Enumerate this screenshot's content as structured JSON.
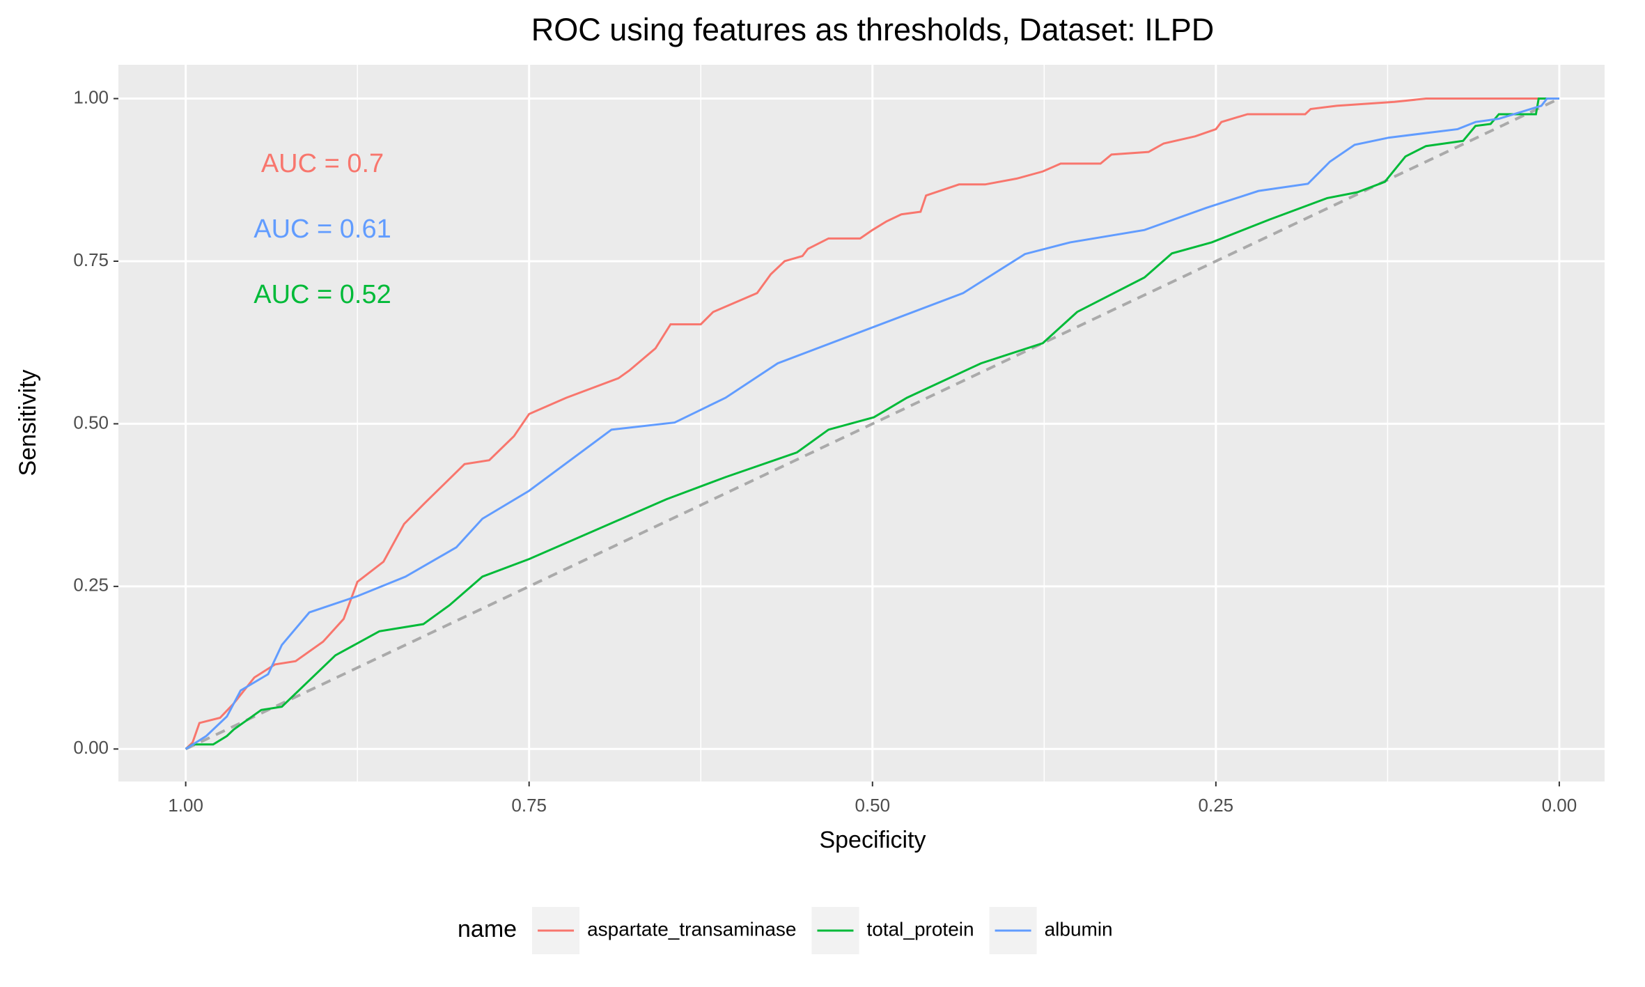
{
  "chart_data": {
    "type": "line",
    "title": "ROC using features as thresholds, Dataset: ILPD",
    "x_label": "Specificity",
    "y_label": "Sensitivity",
    "legend_title": "name",
    "legend_position": "bottom",
    "xlim": [
      1.049,
      -0.033
    ],
    "ylim": [
      -0.05,
      1.052
    ],
    "xticks": [
      {
        "value": 1,
        "label": "1.00"
      },
      {
        "value": 0.75,
        "label": "0.75"
      },
      {
        "value": 0.5,
        "label": "0.50"
      },
      {
        "value": 0.25,
        "label": "0.25"
      },
      {
        "value": 0,
        "label": "0.00"
      }
    ],
    "yticks": [
      {
        "value": 0,
        "label": "0.00"
      },
      {
        "value": 0.25,
        "label": "0.25"
      },
      {
        "value": 0.5,
        "label": "0.50"
      },
      {
        "value": 0.75,
        "label": "0.75"
      },
      {
        "value": 1,
        "label": "1.00"
      }
    ],
    "grid": true,
    "series": [
      {
        "name": "aspartate_transaminase",
        "color": "#F8766D",
        "x": [
          1,
          0.995,
          0.99,
          0.975,
          0.965,
          0.95,
          0.935,
          0.92,
          0.9,
          0.885,
          0.875,
          0.856,
          0.841,
          0.826,
          0.797,
          0.779,
          0.761,
          0.75,
          0.723,
          0.685,
          0.677,
          0.658,
          0.647,
          0.625,
          0.616,
          0.584,
          0.574,
          0.564,
          0.551,
          0.547,
          0.532,
          0.509,
          0.5,
          0.49,
          0.479,
          0.465,
          0.461,
          0.437,
          0.418,
          0.395,
          0.376,
          0.363,
          0.334,
          0.326,
          0.299,
          0.288,
          0.265,
          0.25,
          0.246,
          0.227,
          0.185,
          0.181,
          0.162,
          0.12,
          0.097,
          0
        ],
        "values": [
          0,
          0.01,
          0.04,
          0.048,
          0.07,
          0.11,
          0.13,
          0.135,
          0.165,
          0.2,
          0.257,
          0.288,
          0.346,
          0.378,
          0.438,
          0.444,
          0.481,
          0.515,
          0.54,
          0.57,
          0.582,
          0.616,
          0.653,
          0.653,
          0.672,
          0.701,
          0.73,
          0.75,
          0.758,
          0.769,
          0.785,
          0.785,
          0.798,
          0.811,
          0.822,
          0.826,
          0.851,
          0.868,
          0.868,
          0.877,
          0.888,
          0.9,
          0.9,
          0.914,
          0.918,
          0.931,
          0.942,
          0.953,
          0.964,
          0.976,
          0.976,
          0.984,
          0.989,
          0.995,
          1,
          1
        ]
      },
      {
        "name": "total_protein",
        "color": "#00BA38",
        "x": [
          1,
          0.995,
          0.98,
          0.97,
          0.965,
          0.955,
          0.945,
          0.93,
          0.891,
          0.859,
          0.827,
          0.808,
          0.784,
          0.75,
          0.65,
          0.607,
          0.555,
          0.532,
          0.499,
          0.475,
          0.421,
          0.376,
          0.351,
          0.302,
          0.282,
          0.253,
          0.211,
          0.169,
          0.147,
          0.127,
          0.112,
          0.097,
          0.07,
          0.061,
          0.05,
          0.044,
          0.017,
          0.015,
          0
        ],
        "values": [
          0,
          0.007,
          0.007,
          0.02,
          0.03,
          0.045,
          0.06,
          0.065,
          0.144,
          0.181,
          0.192,
          0.221,
          0.265,
          0.292,
          0.384,
          0.418,
          0.456,
          0.491,
          0.51,
          0.54,
          0.593,
          0.624,
          0.672,
          0.725,
          0.762,
          0.779,
          0.814,
          0.847,
          0.856,
          0.872,
          0.911,
          0.927,
          0.935,
          0.958,
          0.961,
          0.976,
          0.976,
          1,
          1
        ]
      },
      {
        "name": "albumin",
        "color": "#619CFF",
        "x": [
          1,
          0.985,
          0.97,
          0.96,
          0.94,
          0.93,
          0.91,
          0.875,
          0.84,
          0.803,
          0.784,
          0.75,
          0.69,
          0.644,
          0.607,
          0.569,
          0.434,
          0.389,
          0.356,
          0.302,
          0.257,
          0.219,
          0.183,
          0.167,
          0.149,
          0.124,
          0.074,
          0.061,
          0.044,
          0.013,
          0.009,
          0
        ],
        "values": [
          0,
          0.02,
          0.05,
          0.09,
          0.115,
          0.16,
          0.21,
          0.235,
          0.265,
          0.31,
          0.354,
          0.397,
          0.491,
          0.502,
          0.54,
          0.593,
          0.701,
          0.761,
          0.779,
          0.798,
          0.832,
          0.858,
          0.869,
          0.903,
          0.929,
          0.94,
          0.953,
          0.964,
          0.969,
          0.989,
          1,
          1
        ]
      }
    ],
    "annotations": [
      {
        "text": "AUC = 0.7",
        "color": "#F8766D"
      },
      {
        "text": "AUC = 0.61",
        "color": "#619CFF"
      },
      {
        "text": "AUC = 0.52",
        "color": "#00BA38"
      }
    ]
  }
}
